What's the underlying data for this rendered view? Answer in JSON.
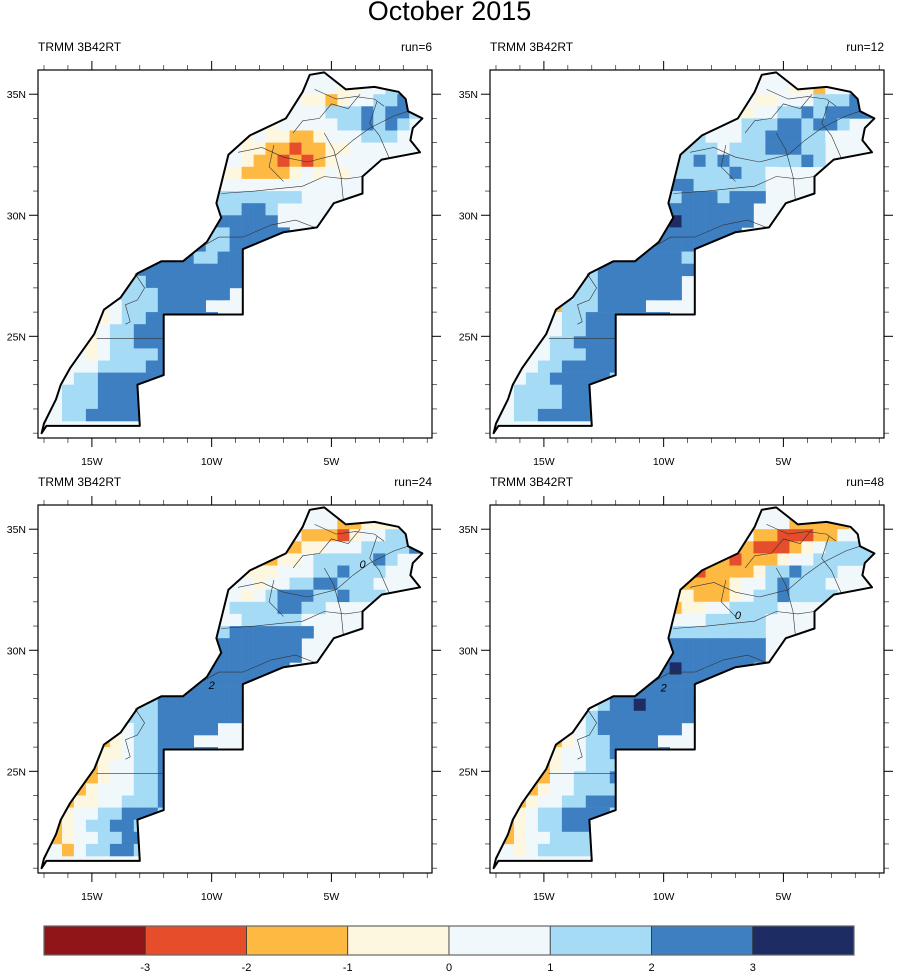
{
  "title": "October 2015",
  "colorbar": {
    "levels": [
      -3,
      -2,
      -1,
      0,
      1,
      2,
      3
    ],
    "level_labels": [
      "-3",
      "-2",
      "-1",
      "0",
      "1",
      "2",
      "3"
    ],
    "colors": [
      "#8f1519",
      "#e64d2b",
      "#fdb942",
      "#fef7e0",
      "#f1f8fc",
      "#a6dbf6",
      "#3d7fc1",
      "#1d2c62"
    ]
  },
  "axes": {
    "lon_ticks": [
      -15,
      -10,
      -5
    ],
    "lon_tick_labels": [
      "15W",
      "10W",
      "5W"
    ],
    "lat_ticks": [
      35,
      30,
      25
    ],
    "lat_tick_labels": [
      "35N",
      "30N",
      "25N"
    ],
    "lon_range": [
      -17.25,
      -0.8
    ],
    "lat_range": [
      20.8,
      36.0
    ]
  },
  "panels": [
    {
      "left_label": "TRMM 3B42RT",
      "right_label": "run=6",
      "contour_labels": []
    },
    {
      "left_label": "TRMM 3B42RT",
      "right_label": "run=12",
      "contour_labels": []
    },
    {
      "left_label": "TRMM 3B42RT",
      "right_label": "run=24",
      "contour_labels": [
        {
          "text": "0",
          "lon": -3.7,
          "lat": 33.4
        },
        {
          "text": "2",
          "lon": -10.0,
          "lat": 28.4
        }
      ]
    },
    {
      "left_label": "TRMM 3B42RT",
      "right_label": "run=48",
      "contour_labels": [
        {
          "text": "0",
          "lon": -6.9,
          "lat": 31.3
        },
        {
          "text": "2",
          "lon": -10.0,
          "lat": 28.3
        }
      ]
    }
  ],
  "chart_data": {
    "type": "heatmap",
    "title": "October 2015",
    "subtitle_left": "TRMM 3B42RT",
    "panels_right": [
      "run=6",
      "run=12",
      "run=24",
      "run=48"
    ],
    "xlabel": "",
    "ylabel": "",
    "x_tick_labels": [
      "15W",
      "10W",
      "5W"
    ],
    "y_tick_labels": [
      "35N",
      "30N",
      "25N"
    ],
    "xlim": [
      -17.25,
      -0.8
    ],
    "ylim": [
      20.8,
      36.0
    ],
    "colorbar_levels": [
      -3,
      -2,
      -1,
      0,
      1,
      2,
      3
    ],
    "grid_resolution_deg": 0.5,
    "grid_origin": {
      "lon": -17.25,
      "lat": 36.0
    },
    "category_note": "cell codes: 0=<-3, 1=-3..-2, 2=-2..-1, 3=-1..0, 4=0..1, 5=1..2, 6=2..3, 7=>3, .=no data",
    "outline": [
      [
        -5.9,
        35.8
      ],
      [
        -5.3,
        35.9
      ],
      [
        -4.4,
        35.2
      ],
      [
        -3.2,
        35.3
      ],
      [
        -2.2,
        35.1
      ],
      [
        -1.9,
        34.8
      ],
      [
        -1.8,
        34.3
      ],
      [
        -1.2,
        34.0
      ],
      [
        -1.6,
        33.6
      ],
      [
        -1.7,
        33.1
      ],
      [
        -1.3,
        32.6
      ],
      [
        -2.9,
        32.3
      ],
      [
        -3.7,
        31.6
      ],
      [
        -3.7,
        30.9
      ],
      [
        -4.9,
        30.5
      ],
      [
        -5.6,
        29.5
      ],
      [
        -7.0,
        29.3
      ],
      [
        -8.7,
        28.6
      ],
      [
        -8.7,
        27.7
      ],
      [
        -8.7,
        27.3
      ],
      [
        -8.7,
        25.9
      ],
      [
        -12.0,
        25.9
      ],
      [
        -12.0,
        23.4
      ],
      [
        -13.1,
        23.0
      ],
      [
        -13.0,
        21.3
      ],
      [
        -16.9,
        21.3
      ],
      [
        -17.1,
        21.0
      ],
      [
        -17.0,
        21.4
      ],
      [
        -16.5,
        22.4
      ],
      [
        -16.3,
        23.0
      ],
      [
        -15.9,
        23.7
      ],
      [
        -15.4,
        24.4
      ],
      [
        -14.9,
        25.1
      ],
      [
        -14.5,
        26.1
      ],
      [
        -13.8,
        26.6
      ],
      [
        -13.1,
        27.6
      ],
      [
        -12.1,
        28.1
      ],
      [
        -11.2,
        28.1
      ],
      [
        -10.2,
        28.9
      ],
      [
        -9.6,
        29.9
      ],
      [
        -9.8,
        30.5
      ],
      [
        -9.3,
        32.5
      ],
      [
        -8.4,
        33.3
      ],
      [
        -6.9,
        34.0
      ],
      [
        -6.2,
        35.1
      ],
      [
        -5.9,
        35.8
      ]
    ],
    "inner_borders": [
      [
        [
          -13.2,
          27.6
        ],
        [
          -12.8,
          27.0
        ],
        [
          -13.1,
          26.5
        ],
        [
          -13.6,
          26.3
        ],
        [
          -13.4,
          25.6
        ],
        [
          -13.6,
          25.5
        ]
      ],
      [
        [
          -14.8,
          24.9
        ],
        [
          -14.0,
          24.9
        ],
        [
          -12.9,
          24.9
        ],
        [
          -12.0,
          24.9
        ]
      ],
      [
        [
          -11.2,
          28.1
        ],
        [
          -10.6,
          28.6
        ],
        [
          -9.7,
          29.1
        ],
        [
          -8.7,
          29.1
        ],
        [
          -7.5,
          29.6
        ],
        [
          -6.5,
          29.8
        ],
        [
          -5.7,
          29.5
        ]
      ],
      [
        [
          -9.6,
          30.9
        ],
        [
          -8.2,
          31.0
        ],
        [
          -7.2,
          31.1
        ],
        [
          -6.2,
          31.2
        ],
        [
          -5.3,
          31.6
        ],
        [
          -4.4,
          31.5
        ],
        [
          -3.7,
          31.6
        ]
      ],
      [
        [
          -8.9,
          32.6
        ],
        [
          -7.9,
          32.8
        ],
        [
          -7.0,
          32.4
        ],
        [
          -6.0,
          32.2
        ],
        [
          -4.8,
          32.5
        ],
        [
          -4.1,
          33.1
        ],
        [
          -3.4,
          33.6
        ],
        [
          -2.4,
          34.1
        ],
        [
          -1.8,
          34.3
        ]
      ],
      [
        [
          -6.6,
          33.4
        ],
        [
          -6.2,
          33.9
        ],
        [
          -5.5,
          34.0
        ],
        [
          -5.0,
          34.6
        ],
        [
          -4.3,
          34.4
        ],
        [
          -3.8,
          35.0
        ]
      ],
      [
        [
          -5.7,
          35.2
        ],
        [
          -4.8,
          34.8
        ],
        [
          -4.0,
          34.9
        ],
        [
          -3.2,
          34.8
        ],
        [
          -2.8,
          34.5
        ]
      ],
      [
        [
          -7.4,
          32.9
        ],
        [
          -7.6,
          32.0
        ],
        [
          -7.0,
          31.4
        ]
      ],
      [
        [
          -5.3,
          33.4
        ],
        [
          -4.9,
          32.7
        ],
        [
          -4.6,
          31.6
        ],
        [
          -4.5,
          30.6
        ]
      ],
      [
        [
          -3.1,
          34.7
        ],
        [
          -3.4,
          33.8
        ],
        [
          -3.0,
          33.3
        ],
        [
          -2.6,
          32.4
        ]
      ]
    ],
    "fields": [
      {
        "name": "run=6",
        "rows": [
          "..................................",
          ".........................334455...",
          "......................33234455666.",
          "...................3344455565665..",
          ".................33344444556565...",
          "................5343322344455544..",
          "...............4433221223344444...",
          "...............44322121234444.....",
          "..............433222234343........",
          ".............5544444444..........",
          "...........55555555555...........",
          "..........5556655665.............",
          ".........55566666666.............",
          "........5666665566666............",
          ".......55666665566666............",
          "......556666655666666............",
          "......5566666666666..............",
          ".....455566666666................",
          ".....45555666666.................",
          "....4445556666...................",
          "....43455666666..................",
          "...4345566666666.................",
          "...43455666666...................",
          "..443455556666...................",
          "..44455556665....................",
          ".44556666665.....................",
          ".45556666655.....................",
          ".455566666655....................",
          "..55666665.......................",
          ".................................."
        ]
      },
      {
        "name": "run=12",
        "rows": [
          "..................................",
          ".........................3324455..",
          "......................334445556666",
          "...................43344556566666.",
          ".................3444555665665....",
          "................45444556665544....",
          "...............5555455566655......",
          "...............5565655555565......",
          "..............5555556554.........",
          ".............5566555555..........",
          "...........556656665666..........",
          "..........556666666666...........",
          ".........5566667666666...........",
          "........4556666666666............",
          ".......45566666666666............",
          "......45566666665................",
          "......2556666666666..............",
          ".....44556666666.................",
          ".....34556666666.................",
          "....225556666....................",
          "....24556666666..................",
          "...24455666666...................",
          "...2455666666....................",
          "..34455566665....................",
          "..4455666665.....................",
          ".4455666665......................",
          ".455556666.......................",
          ".4555566655......................",
          "..55666665.......................",
          ".................................."
        ]
      },
      {
        "name": "run=24",
        "rows": [
          "..................................",
          ".........................22333455.",
          "......................2221344555..",
          "...................22233444555565.",
          ".................2223345555565....",
          "................3333444556555....",
          "...............3443445566555......",
          "...............44345666556555.....",
          "..............4455556655.........",
          ".............2444555554..........",
          "...........345556666666..........",
          "..........455666666666...........",
          ".........3456666666666...........",
          "........2556666666666............",
          ".......24556666666666............",
          "......22556666666................",
          "......2455666666666..............",
          ".....245556666666................",
          ".....2345566666..................",
          "....223455666....................",
          "....23345566666..................",
          "...2234455666666.................",
          "...2234455666666.................",
          "..22344455666....................",
          "..2334455566.....................",
          ".2344556665......................",
          ".2345566555......................",
          ".23445566655.....................",
          "..2455665........................",
          ".................................."
        ]
      },
      {
        "name": "run=48",
        "rows": [
          "..................................",
          ".........................222223432.",
          "......................2211122444..",
          "...................22211123455555.",
          ".................222122234455555..",
          "................2122223556555....",
          "...............2222234456555......",
          "...............33222345565555.....",
          "..............3233445555.........",
          ".............1244455555..........",
          "...........234555555555..........",
          "..........3455566666666..........",
          ".........23456666666666..........",
          "........12456667666666...........",
          ".......22456666666666............",
          "......23456666666................",
          "......2445667666666..............",
          ".....234566666666................",
          ".....23456666666.................",
          "....2234556666...................",
          "....23445566666..................",
          "...2234455566666.................",
          "...2244555666....................",
          "..22344555566....................",
          "..2344556665.....................",
          ".2345566665......................",
          ".2345566655......................",
          ".23445555555.....................",
          "..34555555.......................",
          ".................................."
        ]
      }
    ]
  }
}
